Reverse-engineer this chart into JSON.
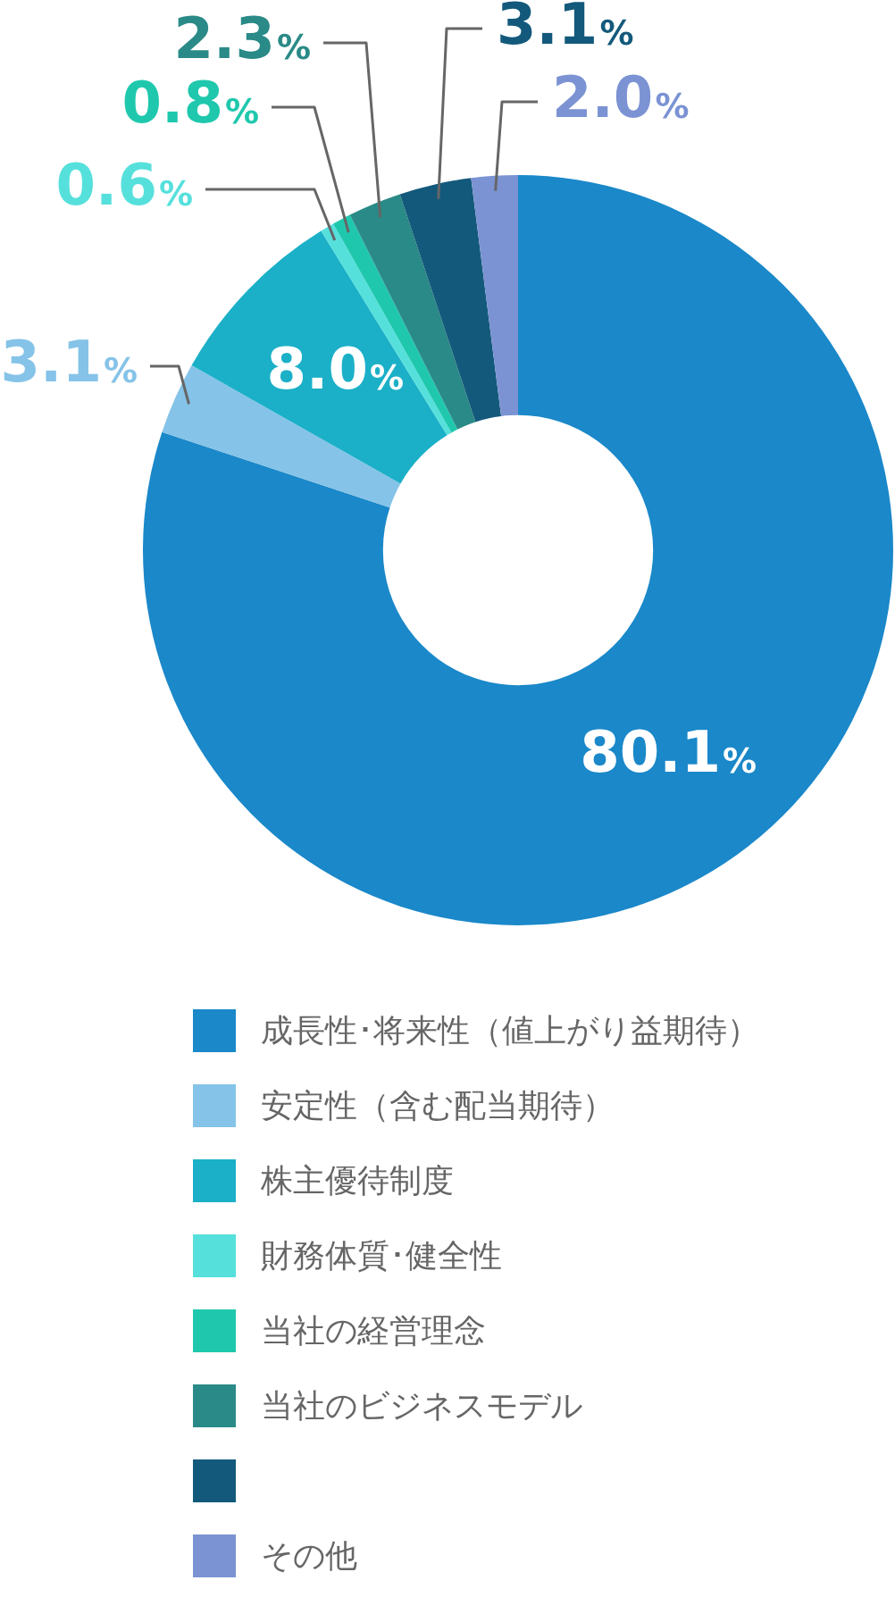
{
  "chart_data": {
    "type": "donut",
    "categories": [
      "成長性･将来性（値上がり益期待）",
      "安定性（含む配当期待）",
      "株主優待制度",
      "財務体質･健全性",
      "当社の経営理念",
      "当社のビジネスモデル",
      null,
      "その他"
    ],
    "values": [
      80.1,
      3.1,
      8.0,
      0.6,
      0.8,
      2.3,
      3.1,
      2.0
    ],
    "colors": [
      "#1a88c9",
      "#85c3e8",
      "#1bb0c8",
      "#56e0dc",
      "#1fc8ad",
      "#2a8a87",
      "#13597b",
      "#7b93d3"
    ],
    "value_labels": [
      "80.1%",
      "3.1%",
      "8.0%",
      "0.6%",
      "0.8%",
      "2.3%",
      "3.1%",
      "2.0%"
    ],
    "legend": "bottom"
  }
}
